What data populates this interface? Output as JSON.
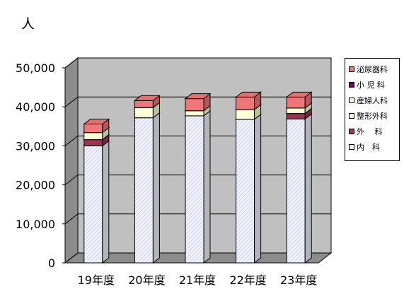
{
  "chart_data": {
    "type": "bar",
    "stacked": true,
    "three_d": true,
    "title": "人",
    "categories": [
      "19年度",
      "20年度",
      "21年度",
      "22年度",
      "23年度"
    ],
    "ylim": [
      0,
      50000
    ],
    "yticks": [
      "0",
      "10,000",
      "20,000",
      "30,000",
      "40,000",
      "50,000"
    ],
    "legend_position": "right",
    "series": [
      {
        "name": "内　科",
        "color": "#eef0fb",
        "values": [
          30000,
          37200,
          37700,
          36800,
          36900
        ]
      },
      {
        "name": "外　 科",
        "color": "#9a3457",
        "values": [
          1600,
          0,
          0,
          0,
          1400
        ]
      },
      {
        "name": "整形外科",
        "color": "#fdfdd6",
        "values": [
          1800,
          2600,
          1300,
          2500,
          1400
        ]
      },
      {
        "name": "産婦人科",
        "color": "#fdfdd6",
        "values": [
          0,
          0,
          0,
          0,
          0
        ]
      },
      {
        "name": "小 児 科",
        "color": "#660066",
        "values": [
          0,
          0,
          0,
          0,
          0
        ]
      },
      {
        "name": "泌尿器科",
        "color": "#ee7777",
        "values": [
          2200,
          1800,
          3100,
          3200,
          2800
        ]
      }
    ]
  }
}
